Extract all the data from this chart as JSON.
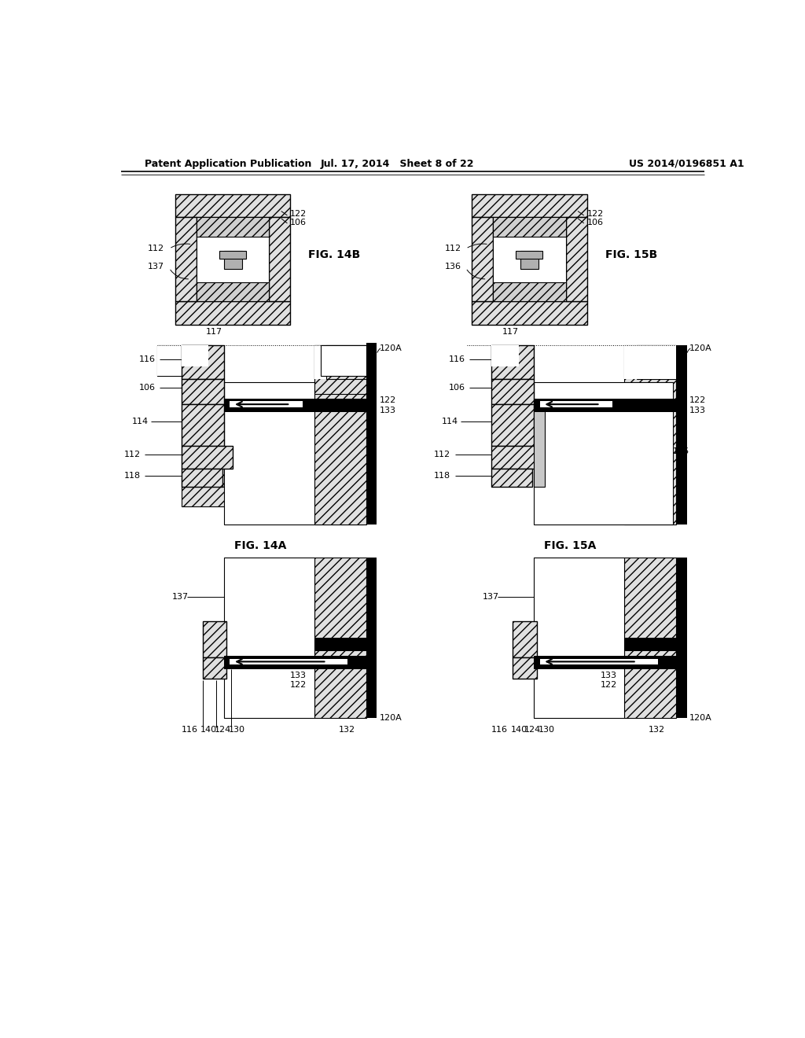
{
  "title_line1": "Patent Application Publication",
  "title_line2": "Jul. 17, 2014   Sheet 8 of 22",
  "title_line4": "US 2014/0196851 A1",
  "fig14a_label": "FIG. 14A",
  "fig14b_label": "FIG. 14B",
  "fig15a_label": "FIG. 15A",
  "fig15b_label": "FIG. 15B",
  "bg_color": "#ffffff"
}
